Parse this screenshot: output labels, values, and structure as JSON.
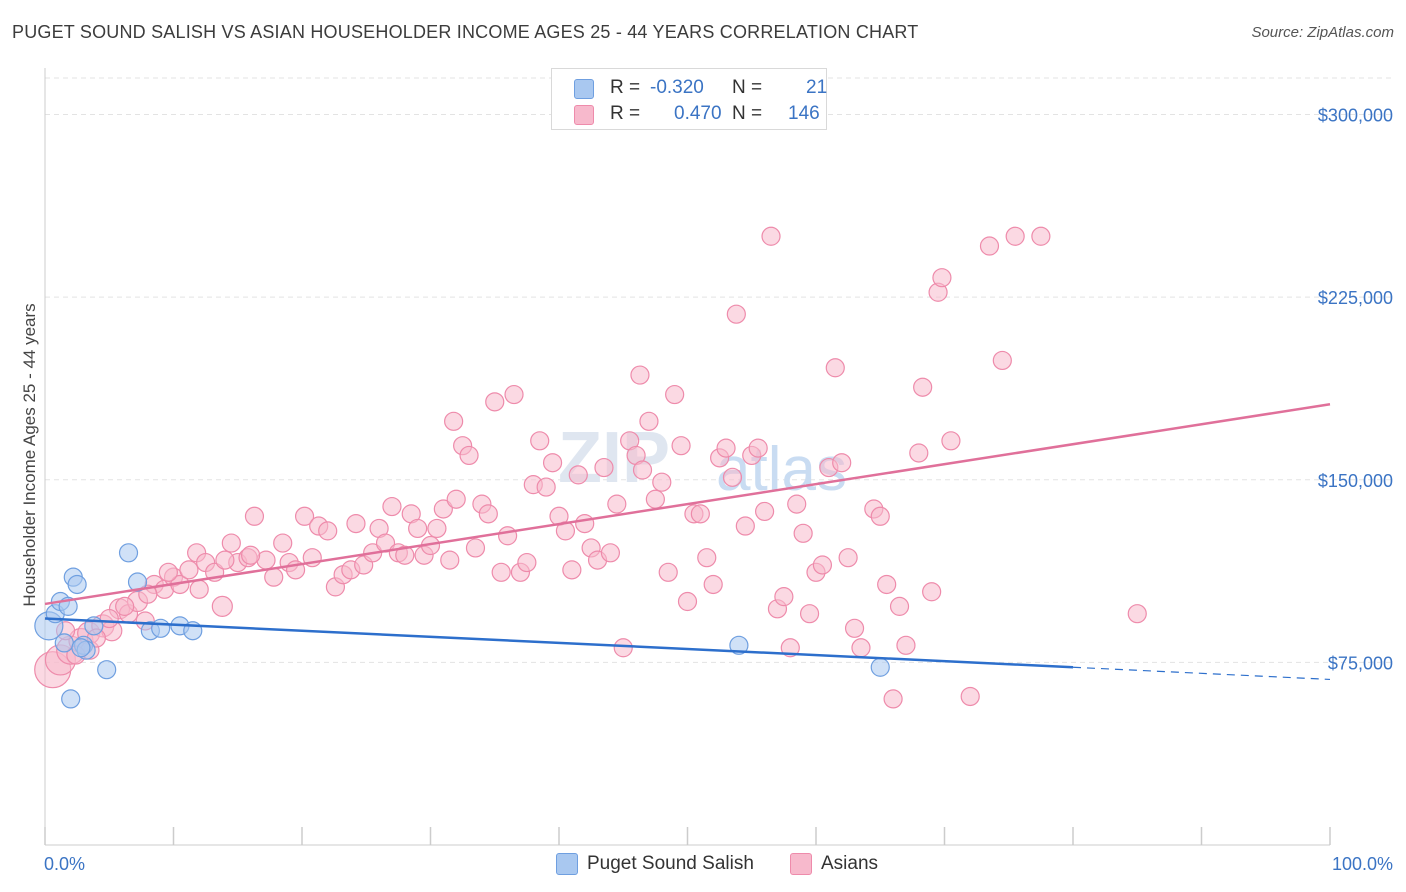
{
  "title": "PUGET SOUND SALISH VS ASIAN HOUSEHOLDER INCOME AGES 25 - 44 YEARS CORRELATION CHART",
  "source": "Source: ZipAtlas.com",
  "watermark": {
    "zip": "ZIP",
    "atlas": "atlas"
  },
  "legend": {
    "rows": [
      {
        "r_label": "R =",
        "r_value": "-0.320",
        "n_label": "N =",
        "n_value": "21",
        "color": "#a9c8f0",
        "stroke": "#6f9fe0"
      },
      {
        "r_label": "R =",
        "r_value": "0.470",
        "n_label": "N =",
        "n_value": "146",
        "color": "#f7b9cc",
        "stroke": "#ee8bab"
      }
    ]
  },
  "bottom_legend": [
    {
      "label": "Puget Sound Salish",
      "color": "#a9c8f0",
      "stroke": "#6f9fe0"
    },
    {
      "label": "Asians",
      "color": "#f7b9cc",
      "stroke": "#ee8bab"
    }
  ],
  "chart_data": {
    "type": "scatter",
    "title": "PUGET SOUND SALISH VS ASIAN HOUSEHOLDER INCOME AGES 25 - 44 YEARS CORRELATION CHART",
    "xlabel": "",
    "ylabel": "Householder Income Ages 25 - 44 years",
    "xlim": [
      0,
      100
    ],
    "ylim": [
      0,
      315000
    ],
    "x_tick_labels": [
      "0.0%",
      "100.0%"
    ],
    "y_ticks": [
      75000,
      150000,
      225000,
      300000
    ],
    "y_tick_labels": [
      "$75,000",
      "$150,000",
      "$225,000",
      "$300,000"
    ],
    "grid": true,
    "legend_position": "top-center",
    "series": [
      {
        "name": "Puget Sound Salish",
        "color": "#a9c8f0",
        "stroke": "#6f9fe0",
        "trend_color": "#2d6fcc",
        "trend": {
          "x0": 0,
          "y0": 93000,
          "x1": 80,
          "y1": 73000,
          "dash_to_x": 100,
          "dash_to_y": 68000
        },
        "points": [
          [
            0.3,
            90000,
            14
          ],
          [
            0.8,
            95000,
            9
          ],
          [
            1.2,
            100000,
            9
          ],
          [
            1.8,
            98000,
            9
          ],
          [
            2.2,
            110000,
            9
          ],
          [
            2.5,
            107000,
            9
          ],
          [
            3.0,
            82000,
            9
          ],
          [
            3.2,
            80000,
            9
          ],
          [
            3.8,
            90000,
            9
          ],
          [
            2.0,
            60000,
            9
          ],
          [
            4.8,
            72000,
            9
          ],
          [
            6.5,
            120000,
            9
          ],
          [
            7.2,
            108000,
            9
          ],
          [
            8.2,
            88000,
            9
          ],
          [
            9.0,
            89000,
            9
          ],
          [
            10.5,
            90000,
            9
          ],
          [
            11.5,
            88000,
            9
          ],
          [
            1.5,
            83000,
            9
          ],
          [
            2.8,
            81000,
            9
          ],
          [
            54.0,
            82000,
            9
          ],
          [
            65.0,
            73000,
            9
          ]
        ]
      },
      {
        "name": "Asians",
        "color": "#f7b9cc",
        "stroke": "#ee8bab",
        "trend_color": "#e0709a",
        "trend": {
          "x0": 0,
          "y0": 99000,
          "x1": 100,
          "y1": 181000
        },
        "points": [
          [
            0.6,
            72000,
            18
          ],
          [
            1.2,
            76000,
            15
          ],
          [
            2.0,
            80000,
            14
          ],
          [
            2.8,
            84000,
            12
          ],
          [
            3.4,
            87000,
            11
          ],
          [
            4.5,
            90000,
            11
          ],
          [
            5.2,
            88000,
            10
          ],
          [
            5.8,
            97000,
            10
          ],
          [
            6.5,
            95000,
            9
          ],
          [
            7.2,
            100000,
            10
          ],
          [
            7.8,
            92000,
            9
          ],
          [
            8.5,
            107000,
            9
          ],
          [
            9.3,
            105000,
            9
          ],
          [
            10.0,
            110000,
            9
          ],
          [
            10.5,
            107000,
            9
          ],
          [
            11.2,
            113000,
            9
          ],
          [
            11.8,
            120000,
            9
          ],
          [
            12.5,
            116000,
            9
          ],
          [
            13.2,
            112000,
            9
          ],
          [
            13.8,
            98000,
            10
          ],
          [
            14.5,
            124000,
            9
          ],
          [
            15.0,
            116000,
            9
          ],
          [
            15.8,
            118000,
            9
          ],
          [
            16.3,
            135000,
            9
          ],
          [
            17.2,
            117000,
            9
          ],
          [
            17.8,
            110000,
            9
          ],
          [
            18.5,
            124000,
            9
          ],
          [
            19.0,
            116000,
            9
          ],
          [
            19.5,
            113000,
            9
          ],
          [
            20.2,
            135000,
            9
          ],
          [
            20.8,
            118000,
            9
          ],
          [
            21.3,
            131000,
            9
          ],
          [
            22.0,
            129000,
            9
          ],
          [
            22.6,
            106000,
            9
          ],
          [
            23.2,
            111000,
            9
          ],
          [
            23.8,
            113000,
            9
          ],
          [
            24.2,
            132000,
            9
          ],
          [
            24.8,
            115000,
            9
          ],
          [
            25.5,
            120000,
            9
          ],
          [
            26.0,
            130000,
            9
          ],
          [
            26.5,
            124000,
            9
          ],
          [
            27.0,
            139000,
            9
          ],
          [
            27.5,
            120000,
            9
          ],
          [
            28.0,
            119000,
            9
          ],
          [
            28.5,
            136000,
            9
          ],
          [
            29.0,
            130000,
            9
          ],
          [
            29.5,
            119000,
            9
          ],
          [
            30.0,
            123000,
            9
          ],
          [
            30.5,
            130000,
            9
          ],
          [
            31.0,
            138000,
            9
          ],
          [
            31.5,
            117000,
            9
          ],
          [
            32.0,
            142000,
            9
          ],
          [
            31.8,
            174000,
            9
          ],
          [
            32.5,
            164000,
            9
          ],
          [
            33.0,
            160000,
            9
          ],
          [
            33.5,
            122000,
            9
          ],
          [
            34.0,
            140000,
            9
          ],
          [
            34.5,
            136000,
            9
          ],
          [
            35.0,
            182000,
            9
          ],
          [
            35.5,
            112000,
            9
          ],
          [
            36.0,
            127000,
            9
          ],
          [
            36.5,
            185000,
            9
          ],
          [
            37.0,
            112000,
            9
          ],
          [
            37.5,
            116000,
            9
          ],
          [
            38.0,
            148000,
            9
          ],
          [
            38.5,
            166000,
            9
          ],
          [
            39.0,
            147000,
            9
          ],
          [
            39.5,
            157000,
            9
          ],
          [
            40.0,
            135000,
            9
          ],
          [
            40.5,
            129000,
            9
          ],
          [
            41.0,
            113000,
            9
          ],
          [
            41.5,
            152000,
            9
          ],
          [
            42.0,
            132000,
            9
          ],
          [
            42.5,
            122000,
            9
          ],
          [
            43.0,
            117000,
            9
          ],
          [
            43.5,
            155000,
            9
          ],
          [
            44.0,
            120000,
            9
          ],
          [
            44.5,
            140000,
            9
          ],
          [
            45.0,
            81000,
            9
          ],
          [
            45.5,
            166000,
            9
          ],
          [
            46.0,
            160000,
            9
          ],
          [
            46.5,
            154000,
            9
          ],
          [
            46.3,
            193000,
            9
          ],
          [
            47.0,
            174000,
            9
          ],
          [
            47.5,
            142000,
            9
          ],
          [
            48.0,
            149000,
            9
          ],
          [
            48.5,
            112000,
            9
          ],
          [
            49.0,
            185000,
            9
          ],
          [
            49.5,
            164000,
            9
          ],
          [
            50.0,
            100000,
            9
          ],
          [
            50.5,
            136000,
            9
          ],
          [
            51.0,
            136000,
            9
          ],
          [
            51.5,
            118000,
            9
          ],
          [
            52.0,
            107000,
            9
          ],
          [
            52.5,
            159000,
            9
          ],
          [
            53.0,
            163000,
            9
          ],
          [
            53.5,
            151000,
            9
          ],
          [
            53.8,
            218000,
            9
          ],
          [
            54.5,
            131000,
            9
          ],
          [
            55.0,
            160000,
            9
          ],
          [
            55.5,
            163000,
            9
          ],
          [
            56.0,
            137000,
            9
          ],
          [
            56.5,
            250000,
            9
          ],
          [
            57.0,
            97000,
            9
          ],
          [
            57.5,
            102000,
            9
          ],
          [
            58.0,
            81000,
            9
          ],
          [
            58.5,
            140000,
            9
          ],
          [
            59.0,
            128000,
            9
          ],
          [
            59.5,
            95000,
            9
          ],
          [
            60.0,
            112000,
            9
          ],
          [
            60.5,
            115000,
            9
          ],
          [
            61.0,
            155000,
            9
          ],
          [
            61.5,
            196000,
            9
          ],
          [
            62.0,
            157000,
            9
          ],
          [
            62.5,
            118000,
            9
          ],
          [
            63.0,
            89000,
            9
          ],
          [
            63.5,
            81000,
            9
          ],
          [
            64.5,
            138000,
            9
          ],
          [
            65.0,
            135000,
            9
          ],
          [
            65.5,
            107000,
            9
          ],
          [
            66.0,
            60000,
            9
          ],
          [
            66.5,
            98000,
            9
          ],
          [
            67.0,
            82000,
            9
          ],
          [
            68.0,
            161000,
            9
          ],
          [
            68.3,
            188000,
            9
          ],
          [
            69.0,
            104000,
            9
          ],
          [
            69.5,
            227000,
            9
          ],
          [
            69.8,
            233000,
            9
          ],
          [
            70.5,
            166000,
            9
          ],
          [
            72.0,
            61000,
            9
          ],
          [
            73.5,
            246000,
            9
          ],
          [
            74.5,
            199000,
            9
          ],
          [
            75.5,
            250000,
            9
          ],
          [
            77.5,
            250000,
            9
          ],
          [
            85.0,
            95000,
            9
          ],
          [
            3.5,
            80000,
            9
          ],
          [
            4.0,
            85000,
            9
          ],
          [
            5.0,
            93000,
            9
          ],
          [
            6.2,
            98000,
            9
          ],
          [
            8.0,
            103000,
            9
          ],
          [
            9.6,
            112000,
            9
          ],
          [
            14.0,
            117000,
            9
          ],
          [
            16.0,
            119000,
            9
          ],
          [
            1.6,
            88000,
            9
          ],
          [
            2.4,
            78000,
            9
          ],
          [
            12.0,
            105000,
            9
          ]
        ]
      }
    ]
  }
}
